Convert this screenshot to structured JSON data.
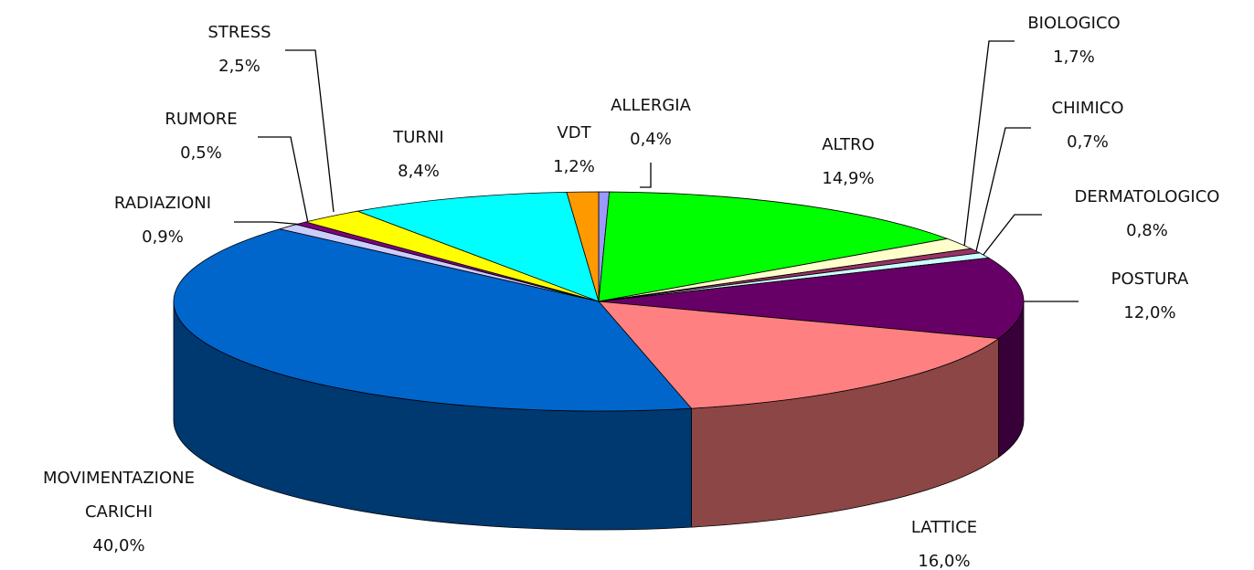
{
  "chart_data": {
    "type": "pie",
    "categories": [
      "ALLERGIA",
      "ALTRO",
      "BIOLOGICO",
      "CHIMICO",
      "DERMATOLOGICO",
      "POSTURA",
      "LATTICE",
      "MOVIMENTAZIONE CARICHI",
      "RADIAZIONI",
      "RUMORE",
      "STRESS",
      "TURNI",
      "VDT"
    ],
    "values": [
      0.4,
      14.9,
      1.7,
      0.7,
      0.8,
      12.0,
      16.0,
      40.0,
      0.9,
      0.5,
      2.5,
      8.4,
      1.2
    ],
    "value_labels": [
      "0,4%",
      "14,9%",
      "1,7%",
      "0,7%",
      "0,8%",
      "12,0%",
      "16,0%",
      "40,0%",
      "0,9%",
      "0,5%",
      "2,5%",
      "8,4%",
      "1,2%"
    ],
    "colors": [
      "#9999ff",
      "#00ff00",
      "#ffffcc",
      "#993366",
      "#ccffff",
      "#660066",
      "#ff8080",
      "#0066cc",
      "#ccccff",
      "#800080",
      "#ffff00",
      "#00ffff",
      "#ff9900"
    ]
  }
}
